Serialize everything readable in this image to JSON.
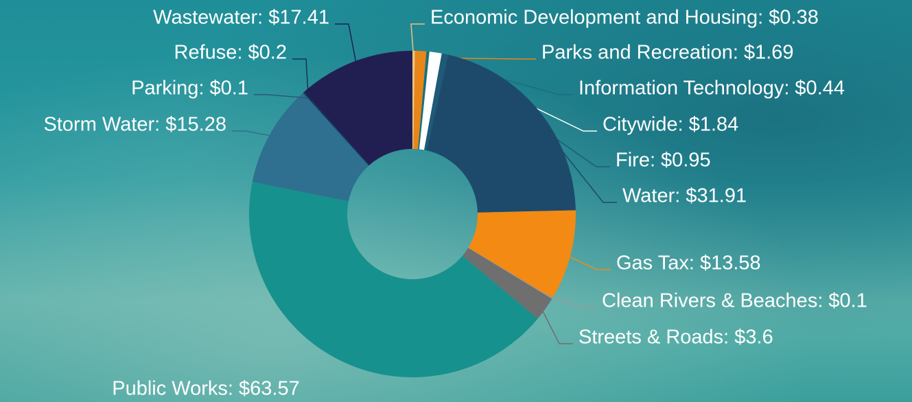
{
  "chart_data": {
    "type": "donut",
    "labels": [
      "Economic Development and Housing: $0.38",
      "Parks and Recreation: $1.69",
      "Information Technology: $0.44",
      "Citywide: $1.84",
      "Fire: $0.95",
      "Water: $31.91",
      "Gas Tax: $13.58",
      "Clean Rivers & Beaches: $0.1",
      "Streets & Roads: $3.6",
      "Public Works: $63.57",
      "Storm Water: $15.28",
      "Parking: $0.1",
      "Refuse: $0.2",
      "Wastewater: $17.41"
    ],
    "values": [
      0.38,
      1.69,
      0.44,
      1.84,
      0.95,
      31.91,
      13.58,
      0.1,
      3.6,
      63.57,
      15.28,
      0.1,
      0.2,
      17.41
    ],
    "colors": [
      "#f0c27c",
      "#e8861a",
      "#1b6f7a",
      "#ffffff",
      "#1f5a78",
      "#1d4a6b",
      "#f28a14",
      "#9a9a9a",
      "#6f6f6f",
      "#17918d",
      "#2f6f8f",
      "#2a5a7a",
      "#16325a",
      "#211f52"
    ]
  }
}
